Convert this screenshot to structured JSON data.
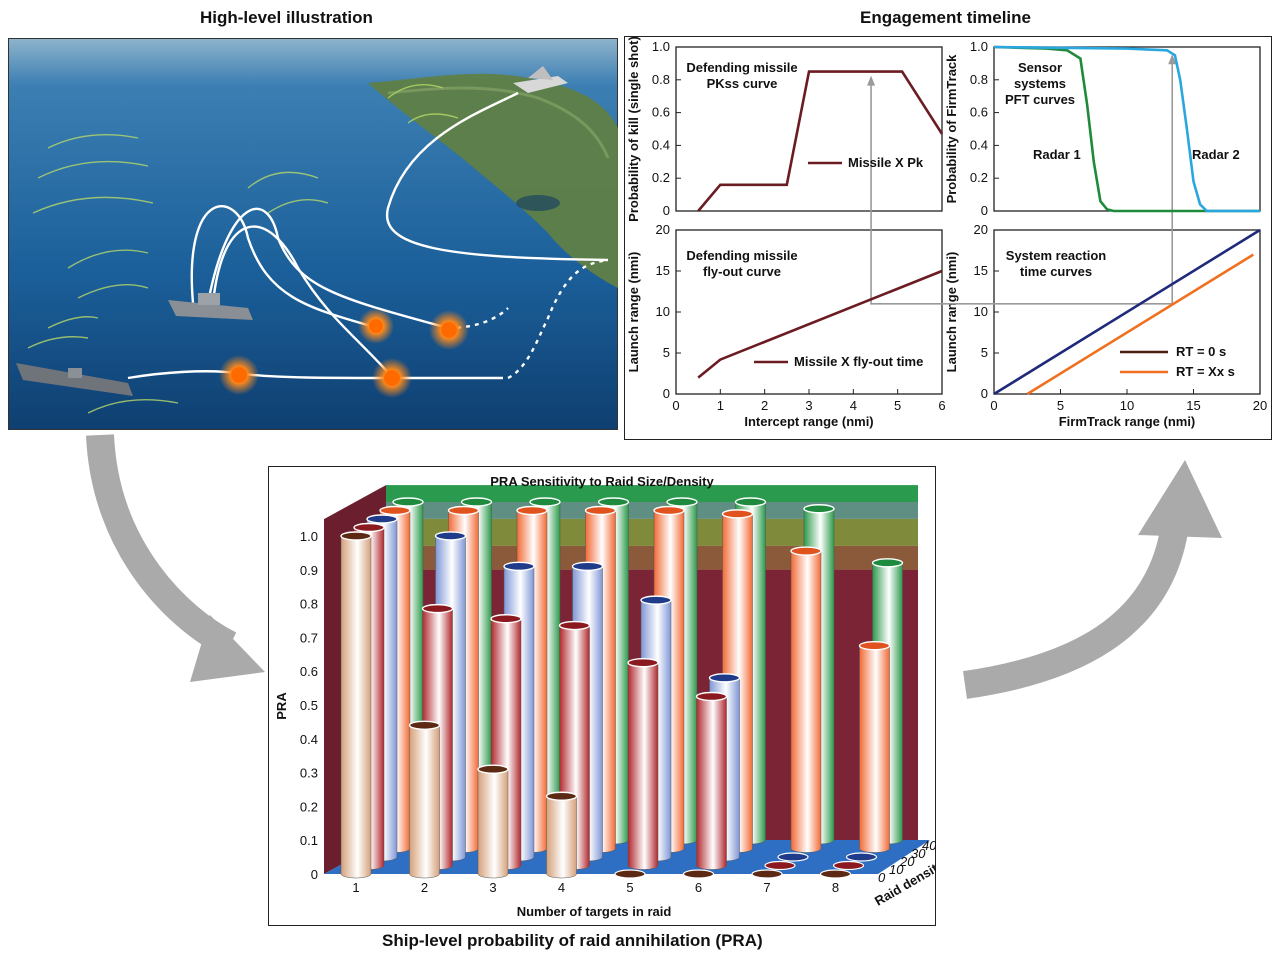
{
  "titles": {
    "illustration": "High-level illustration",
    "timeline": "Engagement timeline",
    "bottom": "Ship-level probability of raid annihilation (PRA)"
  },
  "colors": {
    "missile": "#6b1c22",
    "radar1": "#1f8a3a",
    "radar2": "#2aa7df",
    "rt0": "#4a1e12",
    "rtx": "#f07020",
    "rt0_line": "#1f2a7a",
    "arrow": "#aaaaaa",
    "connector": "#9a9a9a"
  },
  "chart_data": [
    {
      "id": "pk",
      "type": "line",
      "annotation": [
        "Defending missile",
        "PKss curve"
      ],
      "ylabel": "Probability of kill (single shot)",
      "xlim": [
        0,
        6
      ],
      "ylim": [
        0,
        1.0
      ],
      "yticks": [
        "0",
        "0.2",
        "0.4",
        "0.6",
        "0.8",
        "1.0"
      ],
      "series": [
        {
          "name": "Missile X Pk",
          "x": [
            0.5,
            1,
            2.5,
            3,
            5.1,
            6
          ],
          "y": [
            0,
            0.16,
            0.16,
            0.85,
            0.85,
            0.47
          ]
        }
      ]
    },
    {
      "id": "pft",
      "type": "line",
      "annotation": [
        "Sensor",
        "systems",
        "PFT curves"
      ],
      "ylabel": "Probability of FirmTrack",
      "xlim": [
        0,
        20
      ],
      "ylim": [
        0,
        1.0
      ],
      "yticks": [
        "0",
        "0.2",
        "0.4",
        "0.6",
        "0.8",
        "1.0"
      ],
      "series": [
        {
          "name": "Radar 1",
          "x": [
            0,
            4,
            5.5,
            6.5,
            7.0,
            7.5,
            8.0,
            8.5,
            9,
            10,
            20
          ],
          "y": [
            1,
            0.99,
            0.98,
            0.93,
            0.65,
            0.3,
            0.06,
            0.01,
            0,
            0,
            0
          ]
        },
        {
          "name": "Radar 2",
          "x": [
            0,
            10,
            13,
            13.6,
            14.0,
            14.5,
            15.0,
            15.5,
            16,
            17,
            20
          ],
          "y": [
            1,
            0.99,
            0.98,
            0.95,
            0.8,
            0.5,
            0.18,
            0.04,
            0,
            0,
            0
          ]
        }
      ]
    },
    {
      "id": "flyout",
      "type": "line",
      "annotation": [
        "Defending missile",
        "fly-out curve"
      ],
      "xlabel": "Intercept range (nmi)",
      "ylabel": "Launch range (nmi)",
      "xlim": [
        0,
        6
      ],
      "ylim": [
        0,
        20
      ],
      "xticks": [
        "0",
        "1",
        "2",
        "3",
        "4",
        "5",
        "6"
      ],
      "yticks": [
        "0",
        "5",
        "10",
        "15",
        "20"
      ],
      "series": [
        {
          "name": "Missile X fly-out time",
          "x": [
            0.5,
            1,
            6
          ],
          "y": [
            2,
            4.2,
            15
          ]
        }
      ]
    },
    {
      "id": "reaction",
      "type": "line",
      "annotation": [
        "System reaction",
        "time curves"
      ],
      "xlabel": "FirmTrack range (nmi)",
      "ylabel": "Launch range (nmi)",
      "xlim": [
        0,
        20
      ],
      "ylim": [
        0,
        20
      ],
      "xticks": [
        "0",
        "5",
        "10",
        "15",
        "20"
      ],
      "yticks": [
        "0",
        "5",
        "10",
        "15",
        "20"
      ],
      "series": [
        {
          "name": "RT = 0 s",
          "x": [
            0,
            20
          ],
          "y": [
            0,
            20
          ]
        },
        {
          "name": "RT = Xx s",
          "x": [
            2.5,
            19.5
          ],
          "y": [
            0,
            17
          ]
        }
      ]
    },
    {
      "id": "pra",
      "type": "bar",
      "title": "PRA Sensitivity to Raid Size/Density",
      "xlabel": "Number of targets in raid",
      "ylabel": "PRA",
      "zlabel": "Raid density (s)",
      "categories": [
        "1",
        "2",
        "3",
        "4",
        "5",
        "6",
        "7",
        "8"
      ],
      "depth_categories": [
        "0",
        "10",
        "20",
        "30",
        "40"
      ],
      "ylim": [
        0,
        1.0
      ],
      "yticks": [
        "0",
        "0.1",
        "0.2",
        "0.3",
        "0.4",
        "0.5",
        "0.6",
        "0.7",
        "0.8",
        "0.9",
        "1.0"
      ],
      "series": [
        {
          "depth": "0",
          "values": [
            1.0,
            0.44,
            0.31,
            0.23,
            0,
            0,
            0,
            0
          ]
        },
        {
          "depth": "10",
          "values": [
            1.0,
            0.76,
            0.73,
            0.71,
            0.6,
            0.5,
            0,
            0
          ]
        },
        {
          "depth": "20",
          "values": [
            1.0,
            0.95,
            0.86,
            0.86,
            0.76,
            0.53,
            0,
            0
          ]
        },
        {
          "depth": "30",
          "values": [
            1.0,
            1.0,
            1.0,
            1.0,
            1.0,
            0.99,
            0.88,
            0.6
          ]
        },
        {
          "depth": "40",
          "values": [
            1.0,
            1.0,
            1.0,
            1.0,
            1.0,
            1.0,
            0.98,
            0.82
          ]
        }
      ]
    }
  ]
}
